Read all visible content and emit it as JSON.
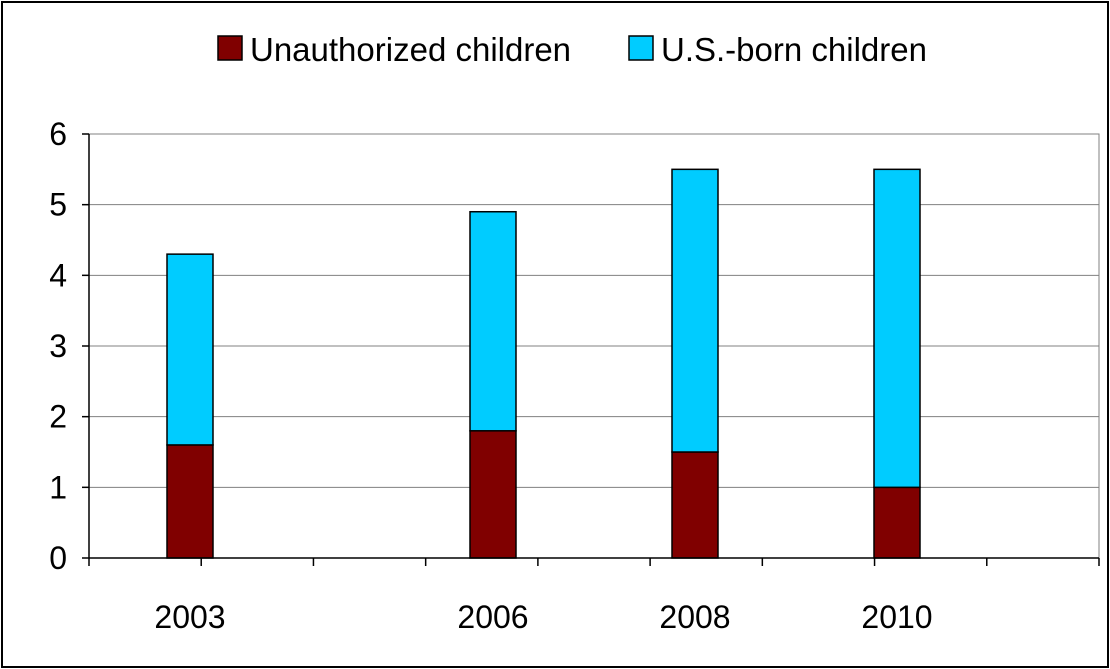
{
  "chart_data": {
    "type": "bar",
    "stacked": true,
    "title": "",
    "xlabel": "",
    "ylabel": "",
    "x_scale": "time",
    "x_range": [
      2002,
      2012
    ],
    "x": [
      2003,
      2006,
      2008,
      2010
    ],
    "x_tick_labels": [
      "2003",
      "2006",
      "2008",
      "2010"
    ],
    "ylim": [
      0,
      6
    ],
    "y_ticks": [
      0,
      1,
      2,
      3,
      4,
      5,
      6
    ],
    "grid": true,
    "legend": "top",
    "series": [
      {
        "name": "Unauthorized children",
        "values": [
          1.6,
          1.8,
          1.5,
          1.0
        ],
        "color": "#800000"
      },
      {
        "name": "U.S.-born children",
        "values": [
          2.7,
          3.1,
          4.0,
          4.5
        ],
        "color": "#00CCFF"
      }
    ]
  }
}
